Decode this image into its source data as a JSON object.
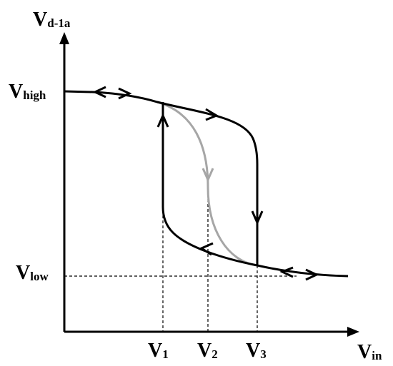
{
  "labels": {
    "y_axis": {
      "main": "V",
      "sub": "d-1a"
    },
    "v_high": {
      "main": "V",
      "sub": "high"
    },
    "v_low": {
      "main": "V",
      "sub": "low"
    },
    "v1": {
      "main": "V",
      "sub": "1"
    },
    "v2": {
      "main": "V",
      "sub": "2"
    },
    "v3": {
      "main": "V",
      "sub": "3"
    },
    "x_axis": {
      "main": "V",
      "sub": "in"
    }
  }
}
